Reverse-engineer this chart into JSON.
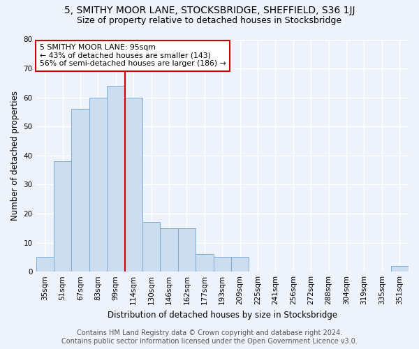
{
  "title": "5, SMITHY MOOR LANE, STOCKSBRIDGE, SHEFFIELD, S36 1JJ",
  "subtitle": "Size of property relative to detached houses in Stocksbridge",
  "xlabel": "Distribution of detached houses by size in Stocksbridge",
  "ylabel": "Number of detached properties",
  "footer_line1": "Contains HM Land Registry data © Crown copyright and database right 2024.",
  "footer_line2": "Contains public sector information licensed under the Open Government Licence v3.0.",
  "bin_labels": [
    "35sqm",
    "51sqm",
    "67sqm",
    "83sqm",
    "99sqm",
    "114sqm",
    "130sqm",
    "146sqm",
    "162sqm",
    "177sqm",
    "193sqm",
    "209sqm",
    "225sqm",
    "241sqm",
    "256sqm",
    "272sqm",
    "288sqm",
    "304sqm",
    "319sqm",
    "335sqm",
    "351sqm"
  ],
  "bar_values": [
    5,
    38,
    56,
    60,
    64,
    60,
    17,
    15,
    15,
    6,
    5,
    5,
    0,
    0,
    0,
    0,
    0,
    0,
    0,
    0,
    2
  ],
  "bar_color": "#ccddf0",
  "bar_edge_color": "#7aadd4",
  "vline_bin_index": 4,
  "vline_color": "#cc0000",
  "annotation_line1": "5 SMITHY MOOR LANE: 95sqm",
  "annotation_line2": "← 43% of detached houses are smaller (143)",
  "annotation_line3": "56% of semi-detached houses are larger (186) →",
  "annotation_box_edge_color": "#cc0000",
  "ylim": [
    0,
    80
  ],
  "yticks": [
    0,
    10,
    20,
    30,
    40,
    50,
    60,
    70,
    80
  ],
  "background_color": "#eef2fa",
  "plot_bg_color": "#eef2fa",
  "title_fontsize": 10,
  "subtitle_fontsize": 9,
  "axis_label_fontsize": 8.5,
  "tick_fontsize": 7.5,
  "footer_fontsize": 7
}
